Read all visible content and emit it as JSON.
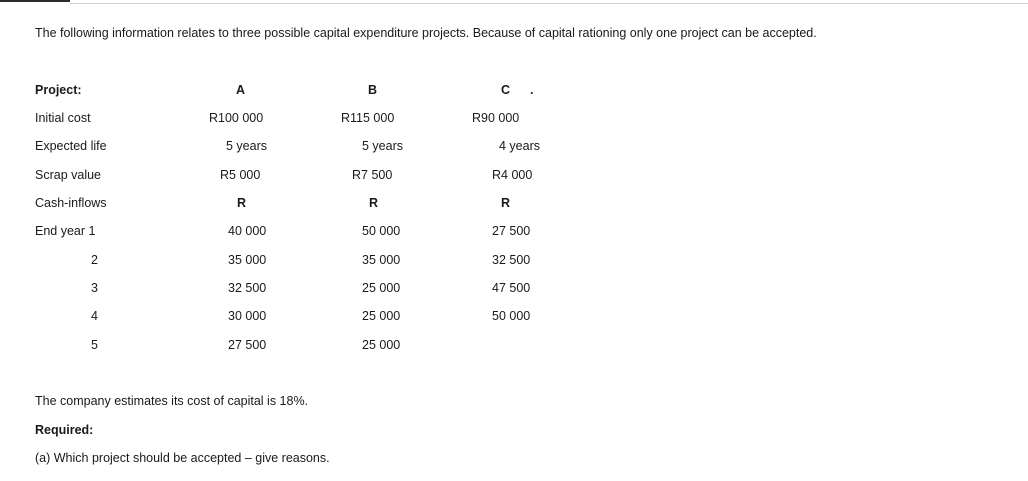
{
  "intro": "The following information relates to three possible capital expenditure projects. Because of capital rationing only one project can be accepted.",
  "table": {
    "header": {
      "label": "Project:",
      "a": "A",
      "b": "B",
      "c": "C",
      "c_mark": "."
    },
    "initial_cost": {
      "label": "Initial cost",
      "a": "R100 000",
      "b": "R115 000",
      "c": "R90 000"
    },
    "expected_life": {
      "label": "Expected life",
      "a": "5 years",
      "b": "5 years",
      "c": "4 years"
    },
    "scrap_value": {
      "label": "Scrap value",
      "a": "R5 000",
      "b": "R7 500",
      "c": "R4 000"
    },
    "cash_inflows": {
      "label": "Cash-inflows",
      "a": "R",
      "b": "R",
      "c": "R"
    },
    "years": [
      {
        "label": "End year 1",
        "a": "40 000",
        "b": "50 000",
        "c": "27 500"
      },
      {
        "label": "2",
        "a": "35 000",
        "b": "35 000",
        "c": "32 500"
      },
      {
        "label": "3",
        "a": "32 500",
        "b": "25 000",
        "c": "47 500"
      },
      {
        "label": "4",
        "a": "30 000",
        "b": "25 000",
        "c": "50 000"
      },
      {
        "label": "5",
        "a": "27 500",
        "b": "25 000",
        "c": ""
      }
    ]
  },
  "cost_of_capital": "The company estimates its cost of capital is 18%.",
  "required_label": "Required:",
  "question_a": "(a) Which project should be accepted – give reasons."
}
